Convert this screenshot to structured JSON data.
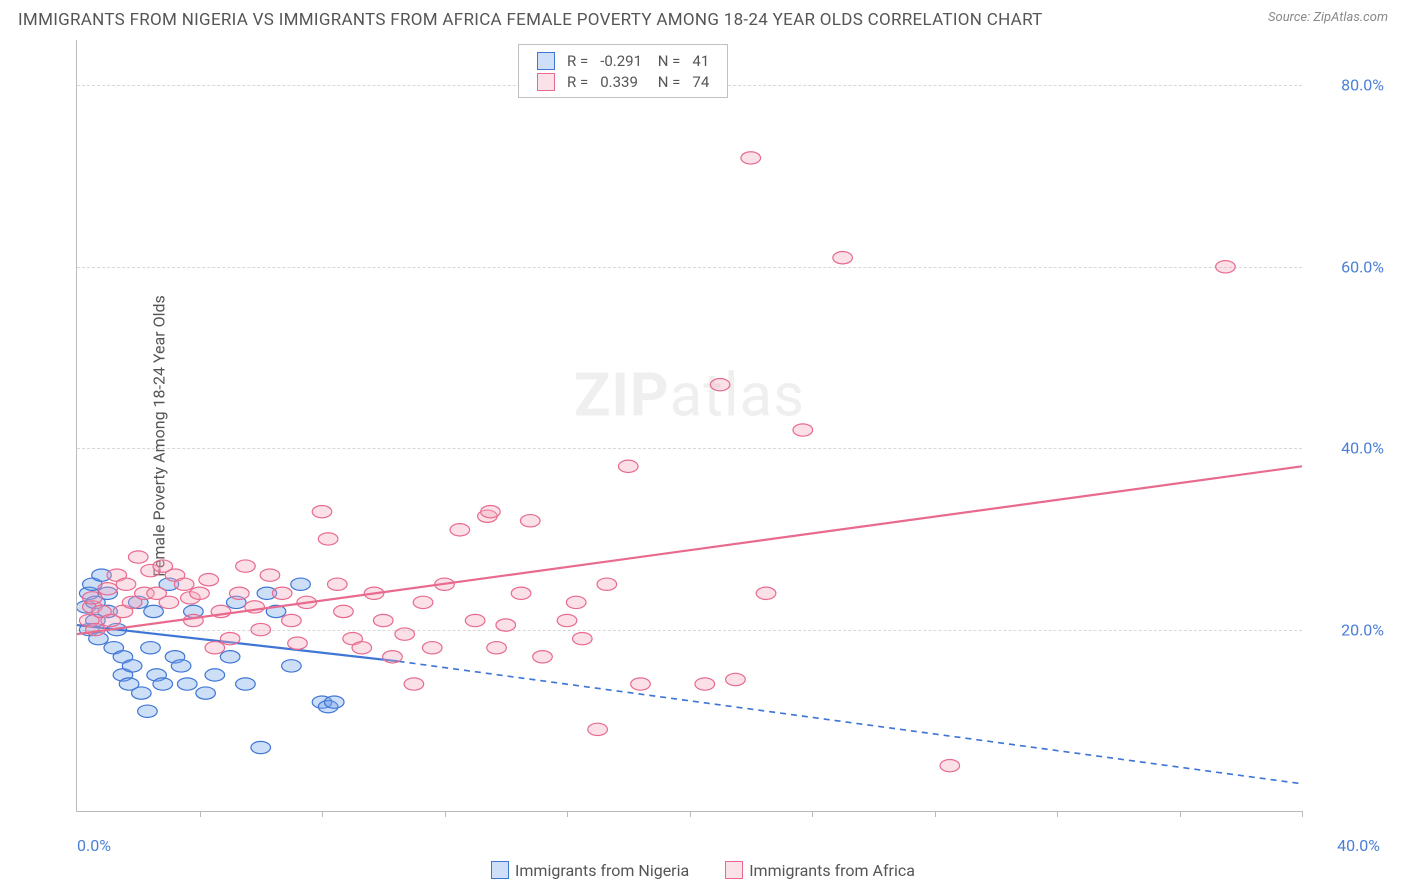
{
  "title": "IMMIGRANTS FROM NIGERIA VS IMMIGRANTS FROM AFRICA FEMALE POVERTY AMONG 18-24 YEAR OLDS CORRELATION CHART",
  "source_label": "Source:",
  "source_value": "ZipAtlas.com",
  "ylabel": "Female Poverty Among 18-24 Year Olds",
  "watermark_bold": "ZIP",
  "watermark_rest": "atlas",
  "chart": {
    "type": "scatter-with-trendlines",
    "background_color": "#ffffff",
    "grid_color": "#d8d8d8",
    "axis_color": "#bbbbbb",
    "tick_label_color": "#4a7fd8",
    "title_color": "#555555",
    "xlim": [
      0,
      40
    ],
    "ylim": [
      0,
      85
    ],
    "yticks": [
      20,
      40,
      60,
      80
    ],
    "ytick_labels": [
      "20.0%",
      "40.0%",
      "60.0%",
      "80.0%"
    ],
    "xticks_minor": [
      4,
      8,
      12,
      16,
      20,
      24,
      28,
      32,
      36,
      40
    ],
    "x_left_label": "0.0%",
    "x_right_label": "40.0%",
    "marker_radius": 8,
    "marker_stroke_width": 1.2,
    "marker_fill_opacity": 0.35,
    "trendline_width": 2.2,
    "dash_pattern": "6 5",
    "series": [
      {
        "key": "nigeria",
        "label": "Immigrants from Nigeria",
        "color": "#6fa0e8",
        "stroke": "#3f76d6",
        "R": "-0.291",
        "N": "41",
        "trend_solid": {
          "x1": 0,
          "y1": 20.5,
          "x2": 10.5,
          "y2": 16.5
        },
        "trend_dash": {
          "x1": 10.5,
          "y1": 16.5,
          "x2": 40,
          "y2": 3
        },
        "points": [
          [
            0.3,
            22.5
          ],
          [
            0.4,
            24
          ],
          [
            0.4,
            20
          ],
          [
            0.5,
            25
          ],
          [
            0.6,
            23
          ],
          [
            0.6,
            21
          ],
          [
            0.7,
            19
          ],
          [
            0.8,
            26
          ],
          [
            1.0,
            24
          ],
          [
            1.0,
            22
          ],
          [
            1.2,
            18
          ],
          [
            1.3,
            20
          ],
          [
            1.5,
            15
          ],
          [
            1.5,
            17
          ],
          [
            1.7,
            14
          ],
          [
            1.8,
            16
          ],
          [
            2.0,
            23
          ],
          [
            2.1,
            13
          ],
          [
            2.3,
            11
          ],
          [
            2.4,
            18
          ],
          [
            2.5,
            22
          ],
          [
            2.6,
            15
          ],
          [
            2.8,
            14
          ],
          [
            3.0,
            25
          ],
          [
            3.2,
            17
          ],
          [
            3.4,
            16
          ],
          [
            3.6,
            14
          ],
          [
            3.8,
            22
          ],
          [
            4.2,
            13
          ],
          [
            4.5,
            15
          ],
          [
            5.0,
            17
          ],
          [
            5.2,
            23
          ],
          [
            5.5,
            14
          ],
          [
            6.0,
            7
          ],
          [
            6.2,
            24
          ],
          [
            6.5,
            22
          ],
          [
            7.0,
            16
          ],
          [
            7.3,
            25
          ],
          [
            8.0,
            12
          ],
          [
            8.2,
            11.5
          ],
          [
            8.4,
            12
          ]
        ]
      },
      {
        "key": "africa",
        "label": "Immigrants from Africa",
        "color": "#f4a6ba",
        "stroke": "#e86a8e",
        "R": "0.339",
        "N": "74",
        "trend_solid": {
          "x1": 0,
          "y1": 19.5,
          "x2": 40,
          "y2": 38
        },
        "trend_dash": null,
        "points": [
          [
            0.4,
            21
          ],
          [
            0.5,
            22.5
          ],
          [
            0.5,
            23.5
          ],
          [
            0.6,
            20
          ],
          [
            0.8,
            22
          ],
          [
            1.0,
            24.5
          ],
          [
            1.1,
            21
          ],
          [
            1.3,
            26
          ],
          [
            1.5,
            22
          ],
          [
            1.6,
            25
          ],
          [
            1.8,
            23
          ],
          [
            2.0,
            28
          ],
          [
            2.2,
            24
          ],
          [
            2.4,
            26.5
          ],
          [
            2.6,
            24
          ],
          [
            2.8,
            27
          ],
          [
            3.0,
            23
          ],
          [
            3.2,
            26
          ],
          [
            3.5,
            25
          ],
          [
            3.7,
            23.5
          ],
          [
            3.8,
            21
          ],
          [
            4.0,
            24
          ],
          [
            4.3,
            25.5
          ],
          [
            4.5,
            18
          ],
          [
            4.7,
            22
          ],
          [
            5.0,
            19
          ],
          [
            5.3,
            24
          ],
          [
            5.5,
            27
          ],
          [
            5.8,
            22.5
          ],
          [
            6.0,
            20
          ],
          [
            6.3,
            26
          ],
          [
            6.7,
            24
          ],
          [
            7.0,
            21
          ],
          [
            7.2,
            18.5
          ],
          [
            7.5,
            23
          ],
          [
            8.0,
            33
          ],
          [
            8.2,
            30
          ],
          [
            8.5,
            25
          ],
          [
            8.7,
            22
          ],
          [
            9.0,
            19
          ],
          [
            9.3,
            18
          ],
          [
            9.7,
            24
          ],
          [
            10.0,
            21
          ],
          [
            10.3,
            17
          ],
          [
            10.7,
            19.5
          ],
          [
            11.0,
            14
          ],
          [
            11.3,
            23
          ],
          [
            11.6,
            18
          ],
          [
            12.0,
            25
          ],
          [
            12.5,
            31
          ],
          [
            13.0,
            21
          ],
          [
            13.4,
            32.5
          ],
          [
            13.5,
            33
          ],
          [
            13.7,
            18
          ],
          [
            14.0,
            20.5
          ],
          [
            14.5,
            24
          ],
          [
            14.8,
            32
          ],
          [
            15.2,
            17
          ],
          [
            16.0,
            21
          ],
          [
            16.3,
            23
          ],
          [
            16.5,
            19
          ],
          [
            17.0,
            9
          ],
          [
            17.3,
            25
          ],
          [
            18.0,
            38
          ],
          [
            18.4,
            14
          ],
          [
            20.5,
            14
          ],
          [
            21.0,
            47
          ],
          [
            21.5,
            14.5
          ],
          [
            22.0,
            72
          ],
          [
            22.5,
            24
          ],
          [
            23.7,
            42
          ],
          [
            25.0,
            61
          ],
          [
            28.5,
            5
          ],
          [
            37.5,
            60
          ]
        ]
      }
    ]
  }
}
